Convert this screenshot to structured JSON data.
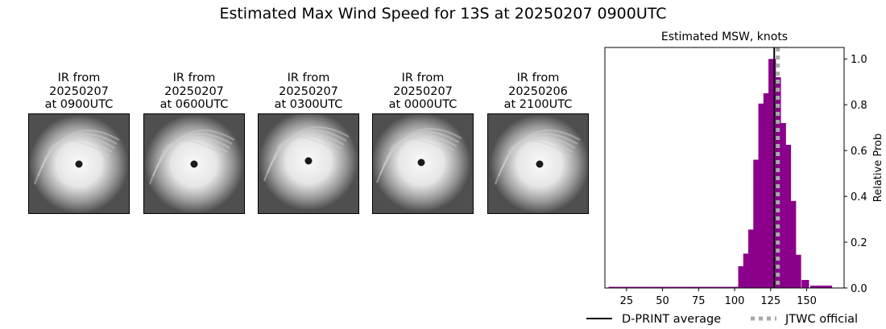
{
  "suptitle": "Estimated Max Wind Speed for 13S at 20250207 0900UTC",
  "ir_panels": [
    {
      "line1": "IR from",
      "line2": "20250207",
      "line3": "at 0900UTC"
    },
    {
      "line1": "IR from",
      "line2": "20250207",
      "line3": "at 0600UTC"
    },
    {
      "line1": "IR from",
      "line2": "20250207",
      "line3": "at 0300UTC"
    },
    {
      "line1": "IR from",
      "line2": "20250207",
      "line3": "at 0000UTC"
    },
    {
      "line1": "IR from",
      "line2": "20250206",
      "line3": "at 2100UTC"
    }
  ],
  "chart_data": {
    "type": "bar",
    "title": "Estimated MSW, knots",
    "xlabel": "",
    "ylabel": "Relative Prob",
    "xlim": [
      10,
      176
    ],
    "ylim": [
      0,
      1.05
    ],
    "xticks": [
      25,
      50,
      75,
      100,
      125,
      150
    ],
    "yticks": [
      0.0,
      0.2,
      0.4,
      0.6,
      0.8,
      1.0
    ],
    "bar_width": 5,
    "bar_color": "#8b008b",
    "bins": [
      {
        "x": 15,
        "y": 0.005
      },
      {
        "x": 20,
        "y": 0.005
      },
      {
        "x": 25,
        "y": 0.005
      },
      {
        "x": 30,
        "y": 0.005
      },
      {
        "x": 35,
        "y": 0.005
      },
      {
        "x": 40,
        "y": 0.005
      },
      {
        "x": 45,
        "y": 0.005
      },
      {
        "x": 50,
        "y": 0.005
      },
      {
        "x": 55,
        "y": 0.005
      },
      {
        "x": 60,
        "y": 0.005
      },
      {
        "x": 65,
        "y": 0.005
      },
      {
        "x": 70,
        "y": 0.005
      },
      {
        "x": 75,
        "y": 0.005
      },
      {
        "x": 80,
        "y": 0.005
      },
      {
        "x": 85,
        "y": 0.005
      },
      {
        "x": 90,
        "y": 0.005
      },
      {
        "x": 95,
        "y": 0.005
      },
      {
        "x": 100,
        "y": 0.005
      },
      {
        "x": 105,
        "y": 0.095
      },
      {
        "x": 108.5,
        "y": 0.15
      },
      {
        "x": 112,
        "y": 0.255
      },
      {
        "x": 115.5,
        "y": 0.56
      },
      {
        "x": 119,
        "y": 0.805
      },
      {
        "x": 122.5,
        "y": 0.85
      },
      {
        "x": 126,
        "y": 1.0
      },
      {
        "x": 129.5,
        "y": 0.92
      },
      {
        "x": 133,
        "y": 0.72
      },
      {
        "x": 136.5,
        "y": 0.625
      },
      {
        "x": 140,
        "y": 0.38
      },
      {
        "x": 143.5,
        "y": 0.145
      },
      {
        "x": 149,
        "y": 0.035
      },
      {
        "x": 155,
        "y": 0.01
      },
      {
        "x": 160,
        "y": 0.01
      },
      {
        "x": 165,
        "y": 0.01
      }
    ],
    "dprint_average": 127.5,
    "jtwc_official": 130,
    "legend": [
      "D-PRINT average",
      "JTWC official"
    ],
    "legend_placement": "below"
  },
  "colors": {
    "bar": "#8b008b",
    "dprint_line": "#000000",
    "jtwc_line": "#a9a9a9"
  }
}
